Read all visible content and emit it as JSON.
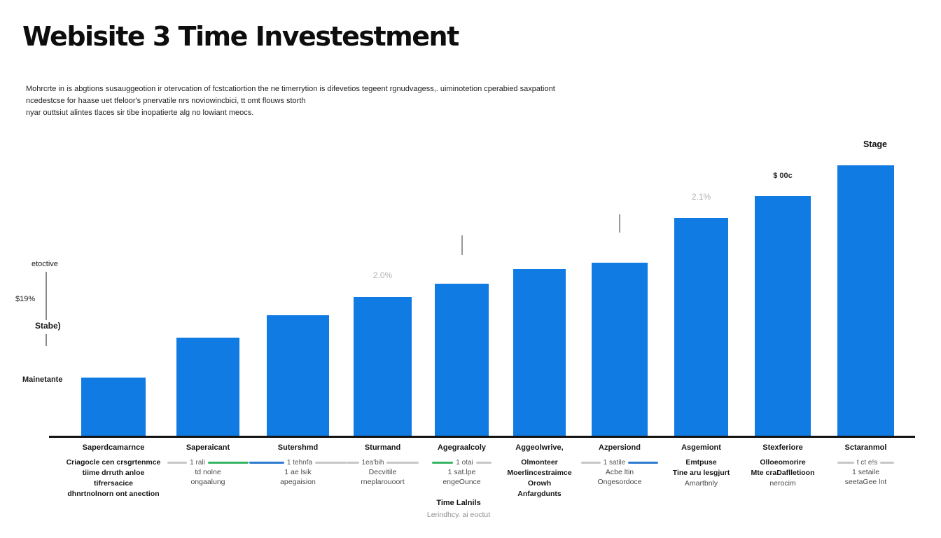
{
  "title": "Webisite 3 Time Investestment",
  "description": {
    "line1": "Mohrcrte in is abgtions susauggeotion ir otervcation of fcstcatiortion the ne timerrytion is difevetios tegeent rgnudvagess,. uiminotetion cperabied saxpationt",
    "line2": "ncedestcse for haase uet tfeloor's pnervatile nrs noviowincbici, tt omt flouws storth",
    "line3": "nyar outtsiut alintes tlaces sir tibe inopatierte alg no lowiant meocs."
  },
  "y_axis": {
    "top_label": "etoctive",
    "pct_label": "$19%",
    "mid_label": "Stabe)",
    "bottom_label": "Mainetante"
  },
  "annotations": {
    "stage_label": "Stage"
  },
  "footer": {
    "title": "Time Lalnils",
    "subtitle": "Lerindhcy. ai eoctut"
  },
  "colors": {
    "bar": "#117be4",
    "gray": "#c6c6c6",
    "green": "#37b464",
    "blue": "#2d7ad1"
  },
  "chart_data": {
    "type": "bar",
    "title": "Webisite 3 Time Investestment",
    "xlabel": "Time Lalnils",
    "ylabel": "",
    "ylim": [
      0,
      420
    ],
    "grid": false,
    "legend_position": "none",
    "categories": [
      "Saperdcamarnce",
      "Saperaicant",
      "Sutershmd",
      "Sturmand",
      "Agegraalcoly",
      "Aggeolwrive, Olmonteer Moerlincestraimce Orowh Anfargdunts",
      "Azpersiond",
      "Asgemiont",
      "Stexferiore",
      "Sctaranmol"
    ],
    "values": [
      84,
      141,
      173,
      199,
      218,
      239,
      248,
      312,
      343,
      387
    ],
    "bars": [
      {
        "category": "Saperdcamarnce",
        "value": 84,
        "x": 116,
        "w": 92
      },
      {
        "category": "Saperaicant",
        "value": 141,
        "x": 252,
        "w": 90
      },
      {
        "category": "Sutershmd",
        "value": 173,
        "x": 381,
        "w": 89
      },
      {
        "category": "Sturmand",
        "value": 199,
        "x": 505,
        "w": 83,
        "note": "2.0%",
        "note_dy": 38
      },
      {
        "category": "Agegraalcoly",
        "value": 218,
        "x": 621,
        "w": 77,
        "tick": true,
        "tick_top": 41,
        "tick_h": 28
      },
      {
        "category": "Aggeolwrive,",
        "value": 239,
        "x": 733,
        "w": 75
      },
      {
        "category": "Azpersiond",
        "value": 248,
        "x": 845,
        "w": 80,
        "tick": true,
        "tick_top": 43,
        "tick_h": 26
      },
      {
        "category": "Asgemiont",
        "value": 312,
        "x": 963,
        "w": 77,
        "note": "2.1%",
        "note_dy": 37
      },
      {
        "category": "Stexferiore",
        "value": 343,
        "x": 1078,
        "w": 80,
        "note": "$ 00c",
        "note_dy": 35,
        "note_style": "dark"
      },
      {
        "category": "Sctaranmol",
        "value": 387,
        "x": 1196,
        "w": 81
      }
    ]
  },
  "x_labels": [
    {
      "header": "Saperdcamarnce",
      "rows": [
        {
          "type": "text",
          "bold": true,
          "text": "Criagocle cen crsgrtenmce"
        },
        {
          "type": "text",
          "bold": true,
          "text": "tiime drruth anloe"
        },
        {
          "type": "text",
          "bold": true,
          "text": "tifrersacice"
        },
        {
          "type": "text",
          "bold": true,
          "text": "dhnrtnolnorn ont anection"
        }
      ]
    },
    {
      "header": "Saperaicant",
      "rows": [
        {
          "type": "legend",
          "left": "gray",
          "lw": 28,
          "text": "1 rali",
          "right": "green",
          "rw": 58
        },
        {
          "type": "text",
          "bold": false,
          "text": "td nolne"
        },
        {
          "type": "text",
          "bold": false,
          "text": "ongaalung"
        }
      ]
    },
    {
      "header": "Sutershmd",
      "rows": [
        {
          "type": "legend",
          "left": "blue",
          "lw": 50,
          "text": "1 tehnfa",
          "right": "gray",
          "rw": 45
        },
        {
          "type": "text",
          "bold": false,
          "text": "1 ae lsik"
        },
        {
          "type": "text",
          "bold": false,
          "text": "apegaision"
        }
      ]
    },
    {
      "header": "Sturmand",
      "rows": [
        {
          "type": "legend",
          "left": "gray",
          "lw": 18,
          "text": "1ea'bih",
          "right": "gray",
          "rw": 46
        },
        {
          "type": "text",
          "bold": false,
          "text": "Decvitile"
        },
        {
          "type": "text",
          "bold": false,
          "text": "rneplarouoort"
        }
      ]
    },
    {
      "header": "Agegraalcoly",
      "rows": [
        {
          "type": "legend",
          "left": "green",
          "lw": 30,
          "text": "1 otai",
          "right": "gray",
          "rw": 22
        },
        {
          "type": "text",
          "bold": false,
          "text": "1 sat.lpe"
        },
        {
          "type": "text",
          "bold": false,
          "text": "engeOunce"
        }
      ]
    },
    {
      "header": "Aggeolwrive,",
      "rows": [
        {
          "type": "text",
          "bold": true,
          "text": "Olmonteer"
        },
        {
          "type": "text",
          "bold": true,
          "text": "Moerlincestraimce"
        },
        {
          "type": "text",
          "bold": true,
          "text": "Orowh"
        },
        {
          "type": "text",
          "bold": true,
          "text": "Anfargdunts"
        }
      ]
    },
    {
      "header": "Azpersiond",
      "rows": [
        {
          "type": "legend",
          "left": "gray",
          "lw": 28,
          "text": "1 satile",
          "right": "blue",
          "rw": 43
        },
        {
          "type": "text",
          "bold": false,
          "text": "Acbe ltin"
        },
        {
          "type": "text",
          "bold": false,
          "text": "Ongesordoce"
        }
      ]
    },
    {
      "header": "Asgemiont",
      "rows": [
        {
          "type": "text",
          "bold": true,
          "text": "Emtpuse"
        },
        {
          "type": "text",
          "bold": true,
          "text": "Tine aru lesgjurt"
        },
        {
          "type": "text",
          "bold": false,
          "text": "Amartbnly"
        }
      ]
    },
    {
      "header": "Stexferiore",
      "rows": [
        {
          "type": "text",
          "bold": true,
          "text": "Olloeomorire"
        },
        {
          "type": "text",
          "bold": true,
          "text": "Mte craDaflletioon"
        },
        {
          "type": "text",
          "bold": false,
          "text": "nerocim"
        }
      ]
    },
    {
      "header": "Sctaranmol",
      "rows": [
        {
          "type": "legend",
          "left": "gray",
          "lw": 24,
          "text": "t ct e!s",
          "right": "gray",
          "rw": 20
        },
        {
          "type": "text",
          "bold": false,
          "text": "1 setaile"
        },
        {
          "type": "text",
          "bold": false,
          "text": "seetaGee lnt"
        }
      ]
    }
  ]
}
